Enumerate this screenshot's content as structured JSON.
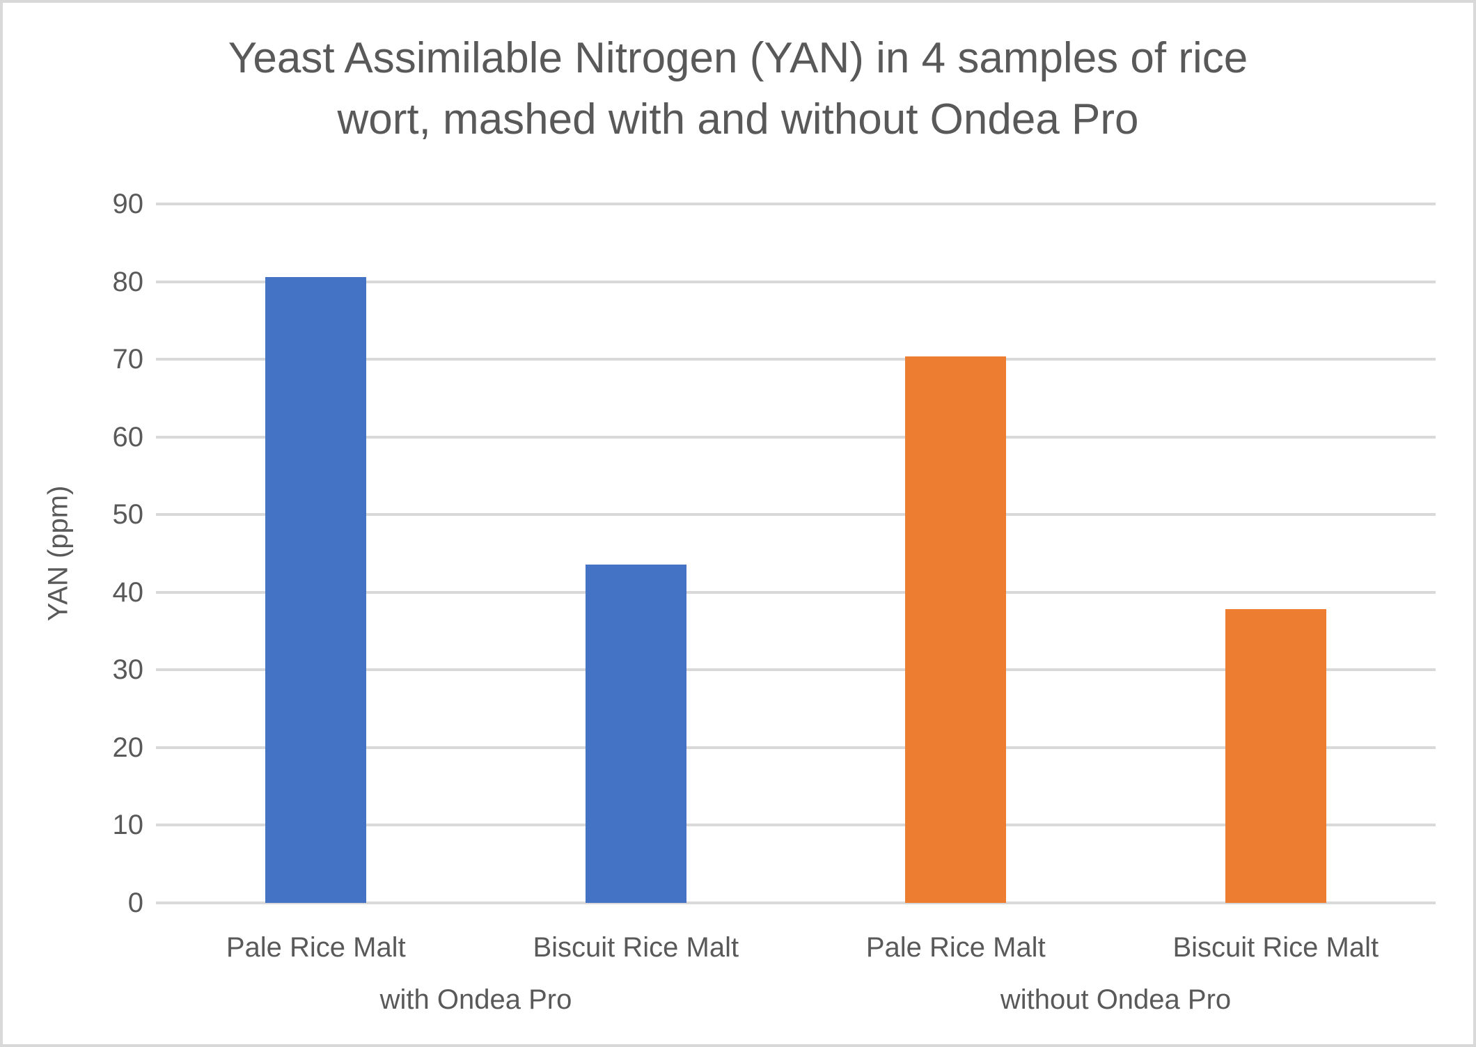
{
  "header": {
    "title_line1": "Yeast Assimilable Nitrogen (YAN) in 4 samples of rice",
    "title_line2": "wort, mashed with and without Ondea Pro"
  },
  "chart_data": {
    "type": "bar",
    "title": "Yeast Assimilable Nitrogen (YAN) in 4 samples of rice wort, mashed with and without Ondea Pro",
    "xlabel": "",
    "ylabel": "YAN (ppm)",
    "ylim": [
      0,
      90
    ],
    "yticks": [
      0,
      10,
      20,
      30,
      40,
      50,
      60,
      70,
      80,
      90
    ],
    "grid": true,
    "legend": "none",
    "categories": [
      "Pale Rice Malt",
      "Biscuit Rice Malt",
      "Pale Rice Malt",
      "Biscuit Rice Malt"
    ],
    "group_labels": [
      "with Ondea Pro",
      "without Ondea Pro"
    ],
    "values": [
      80.6,
      43.6,
      70.4,
      37.8
    ],
    "bar_colors": [
      "#4472C4",
      "#4472C4",
      "#ED7D31",
      "#ED7D31"
    ],
    "colors": {
      "series_blue": "#4472C4",
      "series_orange": "#ED7D31",
      "gridline": "#D9D9D9",
      "axis_line": "#D9D9D9",
      "text": "#595959",
      "frame_border": "#D9D9D9",
      "background": "#FFFFFF"
    }
  }
}
